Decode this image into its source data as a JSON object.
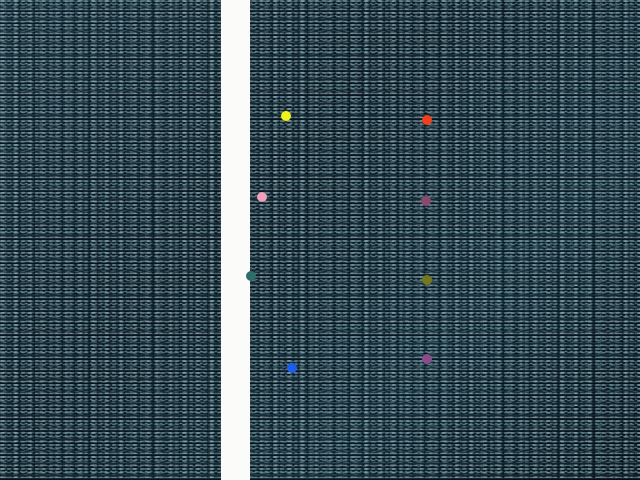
{
  "scene": {
    "background_color": "#14242f",
    "wall_color": "#fbfcfa",
    "dots": [
      {
        "id": "yellow",
        "color": "#f2f21a"
      },
      {
        "id": "red",
        "color": "#f0401c"
      },
      {
        "id": "pink",
        "color": "#f0a0b8"
      },
      {
        "id": "mauve",
        "color": "#8a4a6e"
      },
      {
        "id": "teal",
        "color": "#2e6e6a"
      },
      {
        "id": "olive",
        "color": "#747a1c"
      },
      {
        "id": "blue",
        "color": "#1a5ef0"
      },
      {
        "id": "purple",
        "color": "#8c4c8a"
      }
    ]
  }
}
